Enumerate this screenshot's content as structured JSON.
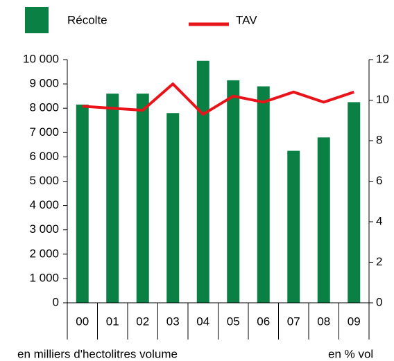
{
  "chart_data": {
    "type": "bar_line",
    "categories": [
      "00",
      "01",
      "02",
      "03",
      "04",
      "05",
      "06",
      "07",
      "08",
      "09"
    ],
    "series": [
      {
        "name": "Récolte",
        "type": "bar",
        "color": "#0a8044",
        "values": [
          8150,
          8600,
          8600,
          7800,
          9950,
          9150,
          8900,
          6250,
          6800,
          8250
        ]
      },
      {
        "name": "TAV",
        "type": "line",
        "axis": "y2",
        "color": "#e8141a",
        "values": [
          9.7,
          9.6,
          9.5,
          10.8,
          9.3,
          10.2,
          9.9,
          10.4,
          9.9,
          10.4
        ]
      }
    ],
    "ylim": [
      0,
      10000
    ],
    "yticks": [
      0,
      {
        "value": 1000,
        "label": "1 000"
      },
      {
        "value": 2000,
        "label": "2 000"
      },
      {
        "value": 3000,
        "label": "3 000"
      },
      {
        "value": 4000,
        "label": "4 000"
      },
      {
        "value": 5000,
        "label": "5 000"
      },
      {
        "value": 6000,
        "label": "6 000"
      },
      {
        "value": 7000,
        "label": "7 000"
      },
      {
        "value": 8000,
        "label": "8 000"
      },
      {
        "value": 9000,
        "label": "9 000"
      },
      {
        "value": 10000,
        "label": "10 000"
      }
    ],
    "y2lim": [
      0,
      12
    ],
    "y2ticks": [
      0,
      2,
      4,
      6,
      8,
      10,
      12
    ],
    "y_label": "en milliers d'hectolitres volume",
    "y2_label": "en % vol",
    "grid": false
  }
}
